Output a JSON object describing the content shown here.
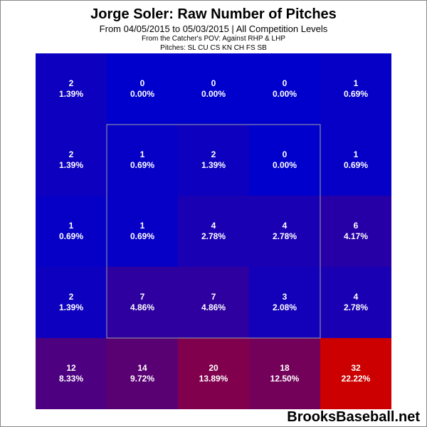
{
  "header": {
    "title": "Jorge Soler: Raw Number of Pitches",
    "subtitle": "From 04/05/2015 to 05/03/2015 | All Competition Levels",
    "pov": "From the Catcher's POV:   Against RHP & LHP",
    "pitches": "Pitches:  SL  CU  CS  KN  CH  FS  SB"
  },
  "footer": {
    "brand": "BrooksBaseball.net"
  },
  "chart_data": {
    "type": "heatmap",
    "title": "Jorge Soler: Raw Number of Pitches",
    "subtitle": "From 04/05/2015 to 05/03/2015 | All Competition Levels",
    "perspective": "From the Catcher's POV",
    "filter": "Against RHP & LHP",
    "pitch_types": [
      "SL",
      "CU",
      "CS",
      "KN",
      "CH",
      "FS",
      "SB"
    ],
    "rows": 5,
    "cols": 5,
    "counts": [
      [
        2,
        0,
        0,
        0,
        1
      ],
      [
        2,
        1,
        2,
        0,
        1
      ],
      [
        1,
        1,
        4,
        4,
        6
      ],
      [
        2,
        7,
        7,
        3,
        4
      ],
      [
        12,
        14,
        20,
        18,
        32
      ]
    ],
    "percents": [
      [
        "1.39%",
        "0.00%",
        "0.00%",
        "0.00%",
        "0.69%"
      ],
      [
        "1.39%",
        "0.69%",
        "1.39%",
        "0.00%",
        "0.69%"
      ],
      [
        "0.69%",
        "0.69%",
        "2.78%",
        "2.78%",
        "4.17%"
      ],
      [
        "1.39%",
        "4.86%",
        "4.86%",
        "2.08%",
        "2.78%"
      ],
      [
        "8.33%",
        "9.72%",
        "13.89%",
        "12.50%",
        "22.22%"
      ]
    ],
    "color_scale": {
      "low": "#0000cc",
      "high": "#cc0000"
    },
    "strike_zone": "inner 3x3 cells"
  }
}
